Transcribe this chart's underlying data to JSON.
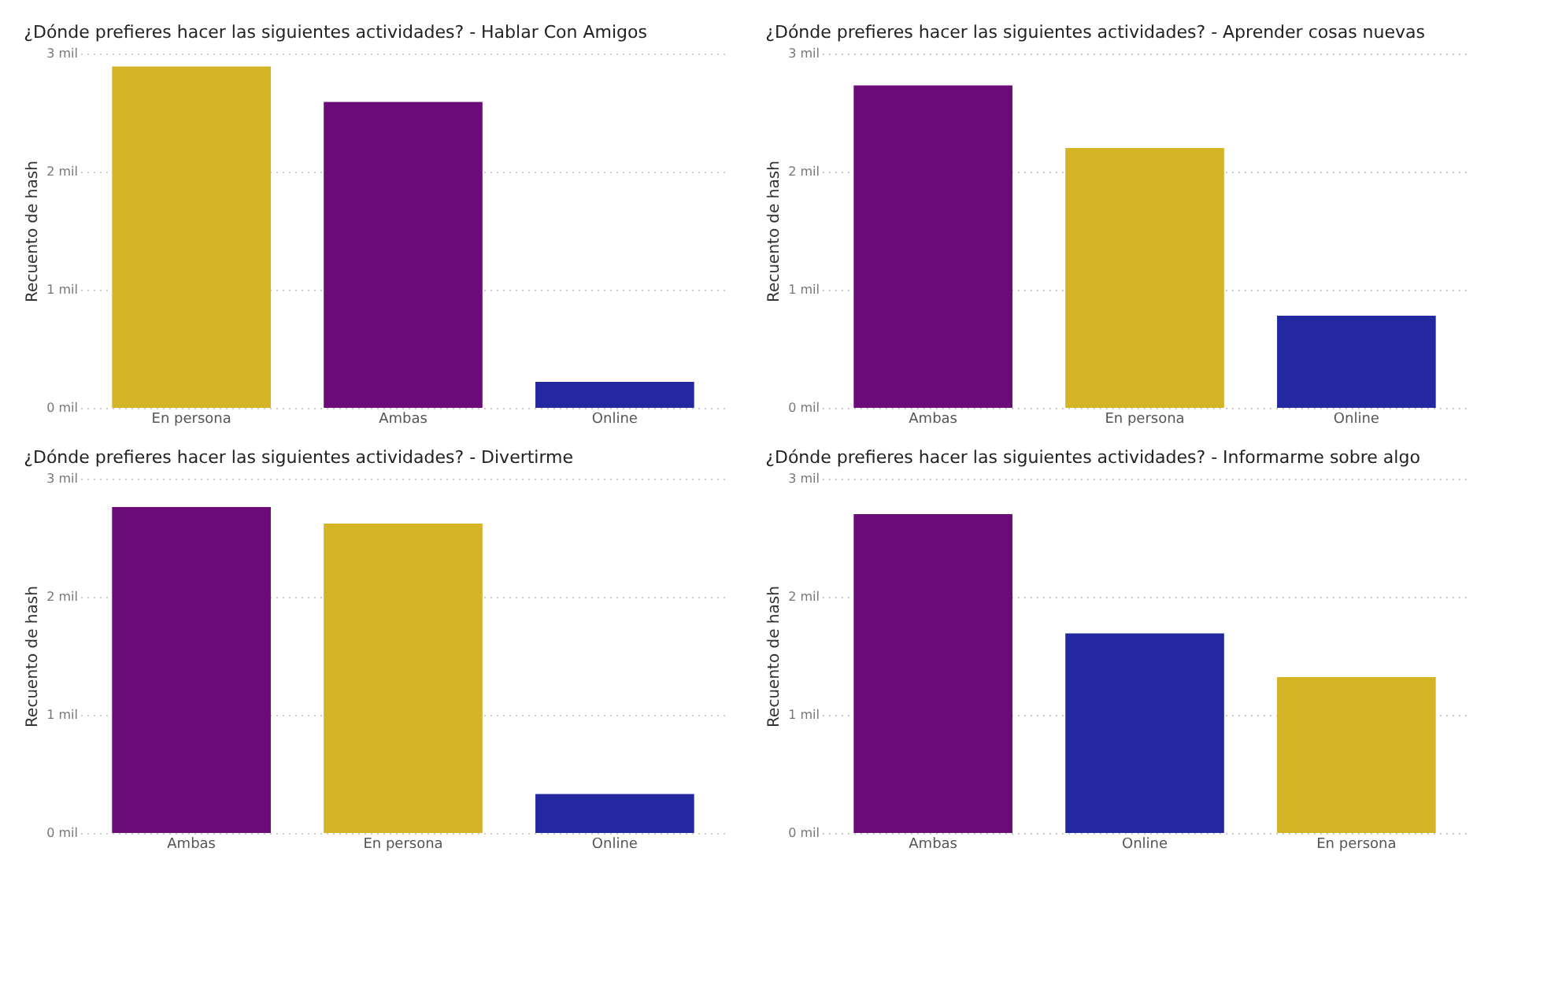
{
  "chart_data": [
    {
      "type": "bar",
      "title": "¿Dónde prefieres hacer las siguientes actividades? - Hablar Con Amigos",
      "ylabel": "Recuento de hash",
      "categories": [
        "En persona",
        "Ambas",
        "Online"
      ],
      "values": [
        2.89,
        2.59,
        0.22
      ],
      "colors": [
        "#d4b325",
        "#6b0a78",
        "#2428a0"
      ],
      "ylim": [
        0,
        3
      ],
      "yticks": [
        {
          "value": 0,
          "label": "0 mil"
        },
        {
          "value": 1,
          "label": "1 mil"
        },
        {
          "value": 2,
          "label": "2 mil"
        },
        {
          "value": 3,
          "label": "3 mil"
        }
      ],
      "grid": "y"
    },
    {
      "type": "bar",
      "title": "¿Dónde prefieres hacer las siguientes actividades? - Aprender cosas nuevas",
      "ylabel": "Recuento de hash",
      "categories": [
        "Ambas",
        "En persona",
        "Online"
      ],
      "values": [
        2.73,
        2.2,
        0.78
      ],
      "colors": [
        "#6b0a78",
        "#d4b325",
        "#2428a0"
      ],
      "ylim": [
        0,
        3
      ],
      "yticks": [
        {
          "value": 0,
          "label": "0 mil"
        },
        {
          "value": 1,
          "label": "1 mil"
        },
        {
          "value": 2,
          "label": "2 mil"
        },
        {
          "value": 3,
          "label": "3 mil"
        }
      ],
      "grid": "y"
    },
    {
      "type": "bar",
      "title": "¿Dónde prefieres hacer las siguientes actividades? - Divertirme",
      "ylabel": "Recuento de hash",
      "categories": [
        "Ambas",
        "En persona",
        "Online"
      ],
      "values": [
        2.76,
        2.62,
        0.33
      ],
      "colors": [
        "#6b0a78",
        "#d4b325",
        "#2428a0"
      ],
      "ylim": [
        0,
        3
      ],
      "yticks": [
        {
          "value": 0,
          "label": "0 mil"
        },
        {
          "value": 1,
          "label": "1 mil"
        },
        {
          "value": 2,
          "label": "2 mil"
        },
        {
          "value": 3,
          "label": "3 mil"
        }
      ],
      "grid": "y"
    },
    {
      "type": "bar",
      "title": "¿Dónde prefieres hacer las siguientes actividades? - Informarme sobre algo",
      "ylabel": "Recuento de hash",
      "categories": [
        "Ambas",
        "Online",
        "En persona"
      ],
      "values": [
        2.7,
        1.69,
        1.32
      ],
      "colors": [
        "#6b0a78",
        "#2428a0",
        "#d4b325"
      ],
      "ylim": [
        0,
        3
      ],
      "yticks": [
        {
          "value": 0,
          "label": "0 mil"
        },
        {
          "value": 1,
          "label": "1 mil"
        },
        {
          "value": 2,
          "label": "2 mil"
        },
        {
          "value": 3,
          "label": "3 mil"
        }
      ],
      "grid": "y"
    }
  ]
}
